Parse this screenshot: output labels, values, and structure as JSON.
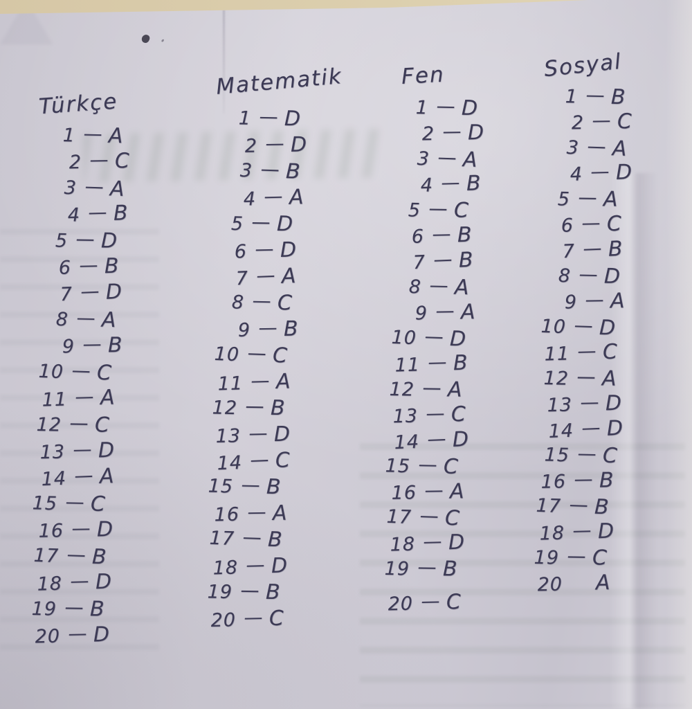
{
  "separator": "—",
  "paper_color": "#cdcad3",
  "surface_color": "#dccfae",
  "ink_color": "#3c3a55",
  "columns": [
    {
      "id": "turkce",
      "title": "Türkçe",
      "answers": [
        {
          "num": "1",
          "ans": "A"
        },
        {
          "num": "2",
          "ans": "C"
        },
        {
          "num": "3",
          "ans": "A"
        },
        {
          "num": "4",
          "ans": "B"
        },
        {
          "num": "5",
          "ans": "D"
        },
        {
          "num": "6",
          "ans": "B"
        },
        {
          "num": "7",
          "ans": "D"
        },
        {
          "num": "8",
          "ans": "A"
        },
        {
          "num": "9",
          "ans": "B"
        },
        {
          "num": "10",
          "ans": "C"
        },
        {
          "num": "11",
          "ans": "A"
        },
        {
          "num": "12",
          "ans": "C"
        },
        {
          "num": "13",
          "ans": "D"
        },
        {
          "num": "14",
          "ans": "A"
        },
        {
          "num": "15",
          "ans": "C"
        },
        {
          "num": "16",
          "ans": "D"
        },
        {
          "num": "17",
          "ans": "B"
        },
        {
          "num": "18",
          "ans": "D"
        },
        {
          "num": "19",
          "ans": "B"
        },
        {
          "num": "20",
          "ans": "D"
        }
      ]
    },
    {
      "id": "matematik",
      "title": "Matematik",
      "answers": [
        {
          "num": "1",
          "ans": "D"
        },
        {
          "num": "2",
          "ans": "D"
        },
        {
          "num": "3",
          "ans": "B"
        },
        {
          "num": "4",
          "ans": "A"
        },
        {
          "num": "5",
          "ans": "D"
        },
        {
          "num": "6",
          "ans": "D"
        },
        {
          "num": "7",
          "ans": "A"
        },
        {
          "num": "8",
          "ans": "C"
        },
        {
          "num": "9",
          "ans": "B"
        },
        {
          "num": "10",
          "ans": "C"
        },
        {
          "num": "11",
          "ans": "A"
        },
        {
          "num": "12",
          "ans": "B"
        },
        {
          "num": "13",
          "ans": "D"
        },
        {
          "num": "14",
          "ans": "C"
        },
        {
          "num": "15",
          "ans": "B"
        },
        {
          "num": "16",
          "ans": "A"
        },
        {
          "num": "17",
          "ans": "B"
        },
        {
          "num": "18",
          "ans": "D"
        },
        {
          "num": "19",
          "ans": "B"
        },
        {
          "num": "20",
          "ans": "C"
        }
      ]
    },
    {
      "id": "fen",
      "title": "Fen",
      "answers": [
        {
          "num": "1",
          "ans": "D"
        },
        {
          "num": "2",
          "ans": "D"
        },
        {
          "num": "3",
          "ans": "A"
        },
        {
          "num": "4",
          "ans": "B"
        },
        {
          "num": "5",
          "ans": "C"
        },
        {
          "num": "6",
          "ans": "B"
        },
        {
          "num": "7",
          "ans": "B"
        },
        {
          "num": "8",
          "ans": "A"
        },
        {
          "num": "9",
          "ans": "A"
        },
        {
          "num": "10",
          "ans": "D"
        },
        {
          "num": "11",
          "ans": "B"
        },
        {
          "num": "12",
          "ans": "A"
        },
        {
          "num": "13",
          "ans": "C"
        },
        {
          "num": "14",
          "ans": "D"
        },
        {
          "num": "15",
          "ans": "C"
        },
        {
          "num": "16",
          "ans": "A"
        },
        {
          "num": "17",
          "ans": "C"
        },
        {
          "num": "18",
          "ans": "D"
        },
        {
          "num": "19",
          "ans": "B"
        },
        {
          "num": "20",
          "ans": "C"
        }
      ]
    },
    {
      "id": "sosyal",
      "title": "Sosyal",
      "answers": [
        {
          "num": "1",
          "ans": "B"
        },
        {
          "num": "2",
          "ans": "C"
        },
        {
          "num": "3",
          "ans": "A"
        },
        {
          "num": "4",
          "ans": "D"
        },
        {
          "num": "5",
          "ans": "A"
        },
        {
          "num": "6",
          "ans": "C"
        },
        {
          "num": "7",
          "ans": "B"
        },
        {
          "num": "8",
          "ans": "D"
        },
        {
          "num": "9",
          "ans": "A"
        },
        {
          "num": "10",
          "ans": "D"
        },
        {
          "num": "11",
          "ans": "C"
        },
        {
          "num": "12",
          "ans": "A"
        },
        {
          "num": "13",
          "ans": "D"
        },
        {
          "num": "14",
          "ans": "D"
        },
        {
          "num": "15",
          "ans": "C"
        },
        {
          "num": "16",
          "ans": "B"
        },
        {
          "num": "17",
          "ans": "B"
        },
        {
          "num": "18",
          "ans": "D"
        },
        {
          "num": "19",
          "ans": "C"
        },
        {
          "num": "20",
          "ans": "A",
          "sep": " "
        }
      ]
    }
  ]
}
